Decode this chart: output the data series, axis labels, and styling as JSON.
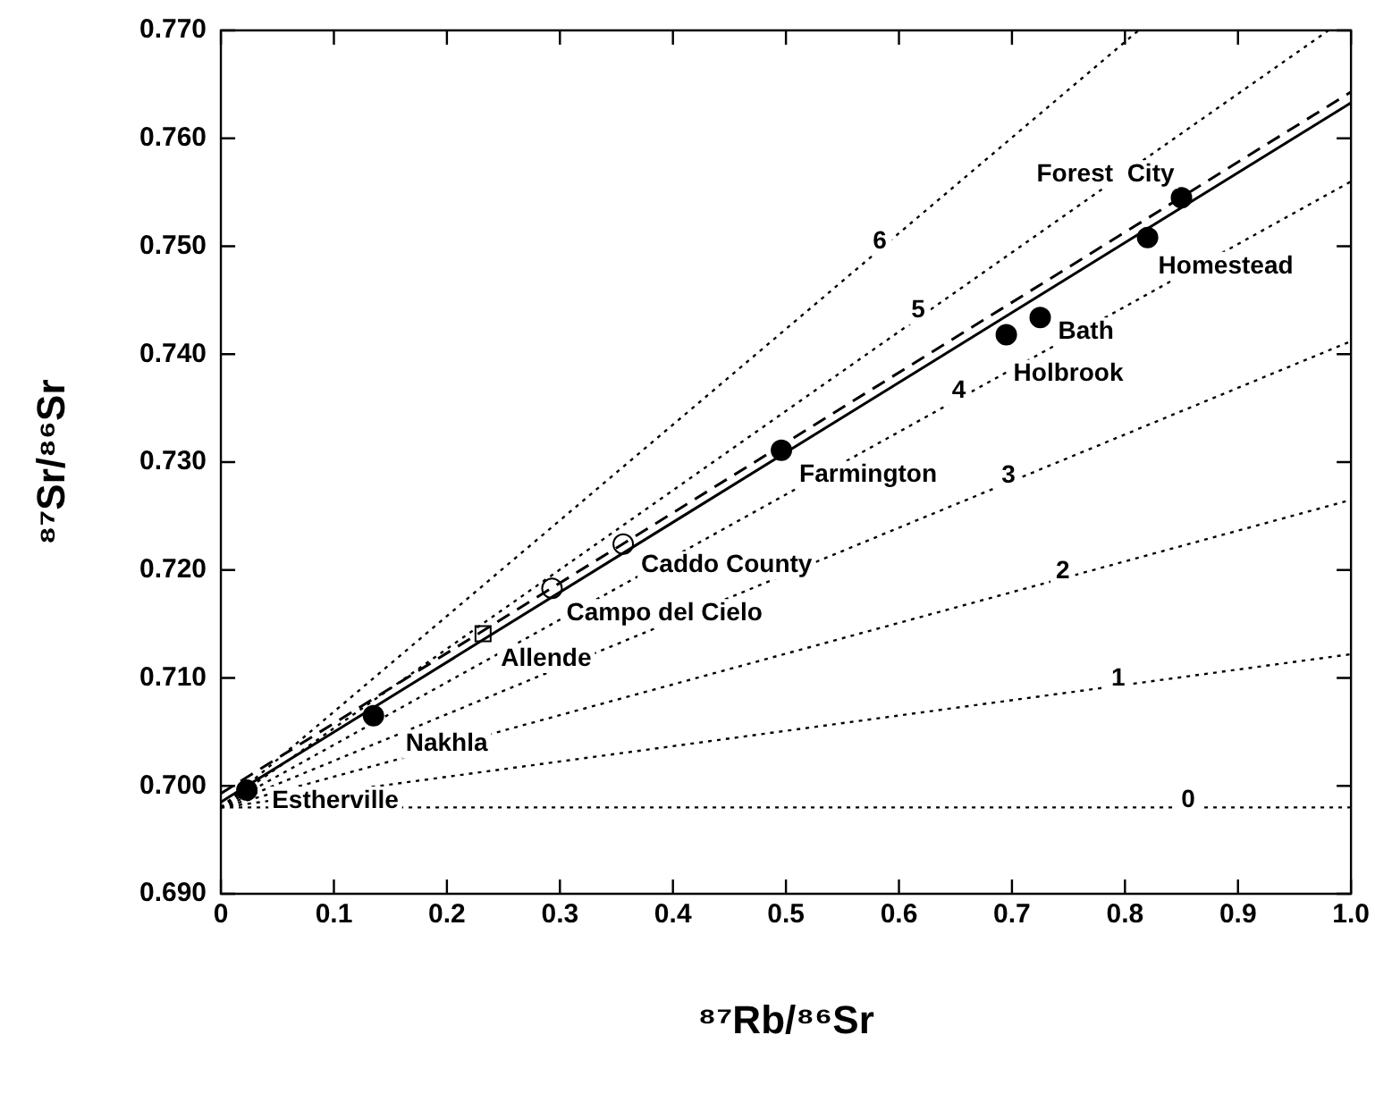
{
  "chart_data": {
    "type": "scatter",
    "xlabel": "⁸⁷Rb/⁸⁶Sr",
    "ylabel": "⁸⁷Sr/⁸⁶Sr",
    "xlim": [
      0,
      1
    ],
    "ylim": [
      0.69,
      0.77
    ],
    "xticks": [
      0,
      0.1,
      0.2,
      0.3,
      0.4,
      0.5,
      0.6,
      0.7,
      0.8,
      0.9,
      {
        "value": 1,
        "label": "1.0"
      }
    ],
    "yticks": [
      {
        "value": 0.69,
        "label": "0.690"
      },
      {
        "value": 0.7,
        "label": "0.700"
      },
      {
        "value": 0.71,
        "label": "0.710"
      },
      {
        "value": 0.72,
        "label": "0.720"
      },
      {
        "value": 0.73,
        "label": "0.730"
      },
      {
        "value": 0.74,
        "label": "0.740"
      },
      {
        "value": 0.75,
        "label": "0.750"
      },
      {
        "value": 0.76,
        "label": "0.760"
      },
      {
        "value": 0.77,
        "label": "0.770"
      }
    ],
    "series": [
      {
        "type": "line",
        "color": "#000000",
        "line_style": "dotted",
        "marker": "none",
        "x": [
          0,
          1
        ],
        "values": [
          0.698,
          0.698
        ]
      },
      {
        "type": "line",
        "color": "#000000",
        "line_style": "dotted",
        "marker": "none",
        "x": [
          0,
          1
        ],
        "values": [
          0.698,
          0.7122
        ]
      },
      {
        "type": "line",
        "color": "#000000",
        "line_style": "dotted",
        "marker": "none",
        "x": [
          0,
          1
        ],
        "values": [
          0.698,
          0.7265
        ]
      },
      {
        "type": "line",
        "color": "#000000",
        "line_style": "dotted",
        "marker": "none",
        "x": [
          0,
          1
        ],
        "values": [
          0.698,
          0.7412
        ]
      },
      {
        "type": "line",
        "color": "#000000",
        "line_style": "dotted",
        "marker": "none",
        "x": [
          0,
          1
        ],
        "values": [
          0.698,
          0.756
        ]
      },
      {
        "type": "line",
        "color": "#000000",
        "line_style": "dotted",
        "marker": "none",
        "x": [
          0,
          0.98
        ],
        "values": [
          0.698,
          0.77
        ]
      },
      {
        "type": "line",
        "color": "#000000",
        "line_style": "dotted",
        "marker": "none",
        "x": [
          0,
          0.812
        ],
        "values": [
          0.698,
          0.77
        ]
      },
      {
        "type": "line",
        "color": "#000000",
        "line_style": "dashed",
        "marker": "none",
        "x": [
          0,
          1
        ],
        "values": [
          0.6993,
          0.7643
        ]
      },
      {
        "type": "line",
        "color": "#000000",
        "line_style": "solid",
        "marker": "none",
        "x": [
          0,
          1
        ],
        "values": [
          0.6985,
          0.7633
        ]
      },
      {
        "type": "scatter",
        "color": "#000000",
        "marker": "circle",
        "x": [
          0.023,
          0.135,
          0.496,
          0.695,
          0.725,
          0.82,
          0.85
        ],
        "values": [
          0.6996,
          0.7065,
          0.7311,
          0.7418,
          0.7434,
          0.7508,
          0.7545
        ]
      },
      {
        "type": "scatter",
        "color": "#ffffff",
        "marker": "circle",
        "x": [
          0.293,
          0.356
        ],
        "values": [
          0.7183,
          0.7224
        ]
      },
      {
        "type": "scatter",
        "color": "#ffffff",
        "marker": "square",
        "x": [
          0.232
        ],
        "values": [
          0.7141
        ]
      }
    ],
    "annotations": [
      {
        "text": "Estherville",
        "x": 0.023,
        "y": 0.6996
      },
      {
        "text": "Nakhla",
        "x": 0.135,
        "y": 0.7065
      },
      {
        "text": "Allende",
        "x": 0.232,
        "y": 0.7141
      },
      {
        "text": "Campo del Cielo",
        "x": 0.293,
        "y": 0.7183
      },
      {
        "text": "Caddo County",
        "x": 0.356,
        "y": 0.7224
      },
      {
        "text": "Farmington",
        "x": 0.496,
        "y": 0.7311
      },
      {
        "text": "Holbrook",
        "x": 0.695,
        "y": 0.7418
      },
      {
        "text": "Bath",
        "x": 0.725,
        "y": 0.7434
      },
      {
        "text": "Homestead",
        "x": 0.82,
        "y": 0.7508
      },
      {
        "text": "Forest  City",
        "x": 0.85,
        "y": 0.7545
      },
      {
        "text": "0",
        "x": 0.856,
        "y": 0.698
      },
      {
        "text": "1",
        "x": 0.794,
        "y": 0.7093
      },
      {
        "text": "2",
        "x": 0.745,
        "y": 0.7192
      },
      {
        "text": "3",
        "x": 0.697,
        "y": 0.7281
      },
      {
        "text": "4",
        "x": 0.653,
        "y": 0.7359
      },
      {
        "text": "5",
        "x": 0.617,
        "y": 0.7434
      },
      {
        "text": "6",
        "x": 0.583,
        "y": 0.7498
      }
    ]
  }
}
